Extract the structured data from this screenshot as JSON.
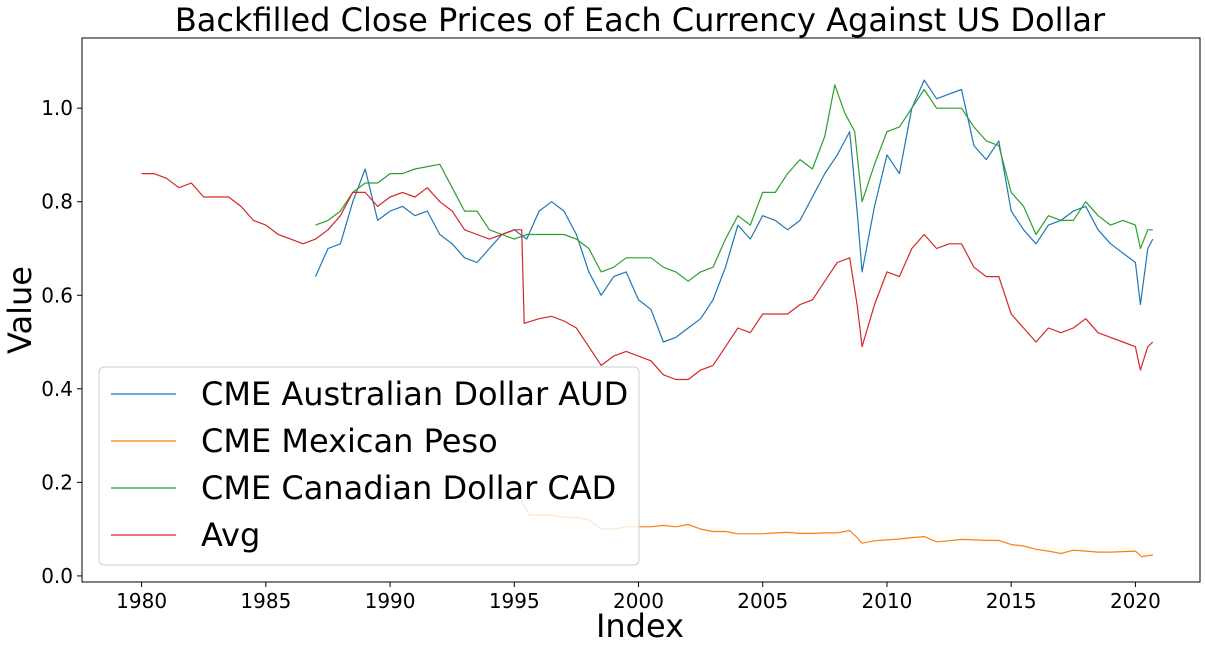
{
  "chart_data": {
    "type": "line",
    "title": "Backfilled Close Prices of Each Currency Against US Dollar",
    "xlabel": "Index",
    "ylabel": "Value",
    "xlim": [
      1977.6,
      2022.6
    ],
    "ylim": [
      -0.013,
      1.15
    ],
    "xticks": [
      1980,
      1985,
      1990,
      1995,
      2000,
      2005,
      2010,
      2015,
      2020
    ],
    "yticks": [
      0.0,
      0.2,
      0.4,
      0.6,
      0.8,
      1.0
    ],
    "ytick_labels": [
      "0.0",
      "0.2",
      "0.4",
      "0.6",
      "0.8",
      "1.0"
    ],
    "grid": false,
    "legend_position": "lower-left",
    "series": [
      {
        "name": "CME Australian Dollar AUD",
        "color": "#1f77b4",
        "points": [
          [
            1987.0,
            0.64
          ],
          [
            1987.5,
            0.7
          ],
          [
            1988.0,
            0.71
          ],
          [
            1988.5,
            0.8
          ],
          [
            1989.0,
            0.87
          ],
          [
            1989.5,
            0.76
          ],
          [
            1990.0,
            0.78
          ],
          [
            1990.5,
            0.79
          ],
          [
            1991.0,
            0.77
          ],
          [
            1991.5,
            0.78
          ],
          [
            1992.0,
            0.73
          ],
          [
            1992.5,
            0.71
          ],
          [
            1993.0,
            0.68
          ],
          [
            1993.5,
            0.67
          ],
          [
            1994.0,
            0.7
          ],
          [
            1994.5,
            0.73
          ],
          [
            1995.0,
            0.74
          ],
          [
            1995.5,
            0.72
          ],
          [
            1996.0,
            0.78
          ],
          [
            1996.5,
            0.8
          ],
          [
            1997.0,
            0.78
          ],
          [
            1997.5,
            0.73
          ],
          [
            1998.0,
            0.65
          ],
          [
            1998.5,
            0.6
          ],
          [
            1999.0,
            0.64
          ],
          [
            1999.5,
            0.65
          ],
          [
            2000.0,
            0.59
          ],
          [
            2000.5,
            0.57
          ],
          [
            2001.0,
            0.5
          ],
          [
            2001.5,
            0.51
          ],
          [
            2002.0,
            0.53
          ],
          [
            2002.5,
            0.55
          ],
          [
            2003.0,
            0.59
          ],
          [
            2003.5,
            0.66
          ],
          [
            2004.0,
            0.75
          ],
          [
            2004.5,
            0.72
          ],
          [
            2005.0,
            0.77
          ],
          [
            2005.5,
            0.76
          ],
          [
            2006.0,
            0.74
          ],
          [
            2006.5,
            0.76
          ],
          [
            2007.0,
            0.81
          ],
          [
            2007.5,
            0.86
          ],
          [
            2008.0,
            0.9
          ],
          [
            2008.5,
            0.95
          ],
          [
            2008.8,
            0.78
          ],
          [
            2009.0,
            0.65
          ],
          [
            2009.5,
            0.79
          ],
          [
            2010.0,
            0.9
          ],
          [
            2010.5,
            0.86
          ],
          [
            2011.0,
            1.0
          ],
          [
            2011.5,
            1.06
          ],
          [
            2012.0,
            1.02
          ],
          [
            2012.5,
            1.03
          ],
          [
            2013.0,
            1.04
          ],
          [
            2013.5,
            0.92
          ],
          [
            2014.0,
            0.89
          ],
          [
            2014.5,
            0.93
          ],
          [
            2015.0,
            0.78
          ],
          [
            2015.5,
            0.74
          ],
          [
            2016.0,
            0.71
          ],
          [
            2016.5,
            0.75
          ],
          [
            2017.0,
            0.76
          ],
          [
            2017.5,
            0.78
          ],
          [
            2018.0,
            0.79
          ],
          [
            2018.5,
            0.74
          ],
          [
            2019.0,
            0.71
          ],
          [
            2019.5,
            0.69
          ],
          [
            2020.0,
            0.67
          ],
          [
            2020.2,
            0.58
          ],
          [
            2020.5,
            0.7
          ],
          [
            2020.7,
            0.72
          ]
        ]
      },
      {
        "name": "CME Mexican Peso",
        "color": "#ff7f0e",
        "points": [
          [
            1995.3,
            0.16
          ],
          [
            1995.6,
            0.13
          ],
          [
            1996.0,
            0.13
          ],
          [
            1996.5,
            0.13
          ],
          [
            1997.0,
            0.125
          ],
          [
            1997.5,
            0.125
          ],
          [
            1998.0,
            0.12
          ],
          [
            1998.5,
            0.1
          ],
          [
            1999.0,
            0.1
          ],
          [
            1999.5,
            0.105
          ],
          [
            2000.0,
            0.105
          ],
          [
            2000.5,
            0.105
          ],
          [
            2001.0,
            0.108
          ],
          [
            2001.5,
            0.105
          ],
          [
            2002.0,
            0.11
          ],
          [
            2002.5,
            0.1
          ],
          [
            2003.0,
            0.095
          ],
          [
            2003.5,
            0.095
          ],
          [
            2004.0,
            0.09
          ],
          [
            2004.5,
            0.09
          ],
          [
            2005.0,
            0.09
          ],
          [
            2005.5,
            0.092
          ],
          [
            2006.0,
            0.093
          ],
          [
            2006.5,
            0.091
          ],
          [
            2007.0,
            0.091
          ],
          [
            2007.5,
            0.092
          ],
          [
            2008.0,
            0.092
          ],
          [
            2008.5,
            0.097
          ],
          [
            2008.8,
            0.082
          ],
          [
            2009.0,
            0.07
          ],
          [
            2009.5,
            0.075
          ],
          [
            2010.0,
            0.077
          ],
          [
            2010.5,
            0.079
          ],
          [
            2011.0,
            0.082
          ],
          [
            2011.5,
            0.084
          ],
          [
            2012.0,
            0.073
          ],
          [
            2012.5,
            0.075
          ],
          [
            2013.0,
            0.078
          ],
          [
            2013.5,
            0.077
          ],
          [
            2014.0,
            0.076
          ],
          [
            2014.5,
            0.076
          ],
          [
            2015.0,
            0.067
          ],
          [
            2015.5,
            0.064
          ],
          [
            2016.0,
            0.057
          ],
          [
            2016.5,
            0.053
          ],
          [
            2017.0,
            0.048
          ],
          [
            2017.5,
            0.055
          ],
          [
            2018.0,
            0.053
          ],
          [
            2018.5,
            0.051
          ],
          [
            2019.0,
            0.051
          ],
          [
            2019.5,
            0.052
          ],
          [
            2020.0,
            0.053
          ],
          [
            2020.25,
            0.041
          ],
          [
            2020.7,
            0.045
          ]
        ]
      },
      {
        "name": "CME Canadian Dollar CAD",
        "color": "#2ca02c",
        "points": [
          [
            1987.0,
            0.75
          ],
          [
            1987.5,
            0.76
          ],
          [
            1988.0,
            0.78
          ],
          [
            1988.5,
            0.82
          ],
          [
            1989.0,
            0.84
          ],
          [
            1989.5,
            0.84
          ],
          [
            1990.0,
            0.86
          ],
          [
            1990.5,
            0.86
          ],
          [
            1991.0,
            0.87
          ],
          [
            1991.5,
            0.875
          ],
          [
            1992.0,
            0.88
          ],
          [
            1992.5,
            0.83
          ],
          [
            1993.0,
            0.78
          ],
          [
            1993.5,
            0.78
          ],
          [
            1994.0,
            0.74
          ],
          [
            1994.5,
            0.73
          ],
          [
            1995.0,
            0.72
          ],
          [
            1995.5,
            0.73
          ],
          [
            1996.0,
            0.73
          ],
          [
            1996.5,
            0.73
          ],
          [
            1997.0,
            0.73
          ],
          [
            1997.5,
            0.72
          ],
          [
            1998.0,
            0.7
          ],
          [
            1998.5,
            0.65
          ],
          [
            1999.0,
            0.66
          ],
          [
            1999.5,
            0.68
          ],
          [
            2000.0,
            0.68
          ],
          [
            2000.5,
            0.68
          ],
          [
            2001.0,
            0.66
          ],
          [
            2001.5,
            0.65
          ],
          [
            2002.0,
            0.63
          ],
          [
            2002.5,
            0.65
          ],
          [
            2003.0,
            0.66
          ],
          [
            2003.5,
            0.72
          ],
          [
            2004.0,
            0.77
          ],
          [
            2004.5,
            0.75
          ],
          [
            2005.0,
            0.82
          ],
          [
            2005.5,
            0.82
          ],
          [
            2006.0,
            0.86
          ],
          [
            2006.5,
            0.89
          ],
          [
            2007.0,
            0.87
          ],
          [
            2007.5,
            0.94
          ],
          [
            2007.9,
            1.05
          ],
          [
            2008.3,
            0.99
          ],
          [
            2008.7,
            0.95
          ],
          [
            2009.0,
            0.8
          ],
          [
            2009.5,
            0.88
          ],
          [
            2010.0,
            0.95
          ],
          [
            2010.5,
            0.96
          ],
          [
            2011.0,
            1.0
          ],
          [
            2011.5,
            1.04
          ],
          [
            2012.0,
            1.0
          ],
          [
            2012.5,
            1.0
          ],
          [
            2013.0,
            1.0
          ],
          [
            2013.5,
            0.96
          ],
          [
            2014.0,
            0.93
          ],
          [
            2014.5,
            0.92
          ],
          [
            2015.0,
            0.82
          ],
          [
            2015.5,
            0.79
          ],
          [
            2016.0,
            0.73
          ],
          [
            2016.5,
            0.77
          ],
          [
            2017.0,
            0.76
          ],
          [
            2017.5,
            0.76
          ],
          [
            2018.0,
            0.8
          ],
          [
            2018.5,
            0.77
          ],
          [
            2019.0,
            0.75
          ],
          [
            2019.5,
            0.76
          ],
          [
            2020.0,
            0.75
          ],
          [
            2020.2,
            0.7
          ],
          [
            2020.5,
            0.74
          ],
          [
            2020.7,
            0.74
          ]
        ]
      },
      {
        "name": "Avg",
        "color": "#d62728",
        "points": [
          [
            1980.0,
            0.86
          ],
          [
            1980.5,
            0.86
          ],
          [
            1981.0,
            0.85
          ],
          [
            1981.5,
            0.83
          ],
          [
            1982.0,
            0.84
          ],
          [
            1982.5,
            0.81
          ],
          [
            1983.0,
            0.81
          ],
          [
            1983.5,
            0.81
          ],
          [
            1984.0,
            0.79
          ],
          [
            1984.5,
            0.76
          ],
          [
            1985.0,
            0.75
          ],
          [
            1985.5,
            0.73
          ],
          [
            1986.0,
            0.72
          ],
          [
            1986.5,
            0.71
          ],
          [
            1987.0,
            0.72
          ],
          [
            1987.5,
            0.74
          ],
          [
            1988.0,
            0.77
          ],
          [
            1988.5,
            0.82
          ],
          [
            1989.0,
            0.82
          ],
          [
            1989.5,
            0.79
          ],
          [
            1990.0,
            0.81
          ],
          [
            1990.5,
            0.82
          ],
          [
            1991.0,
            0.81
          ],
          [
            1991.5,
            0.83
          ],
          [
            1992.0,
            0.8
          ],
          [
            1992.5,
            0.78
          ],
          [
            1993.0,
            0.74
          ],
          [
            1993.5,
            0.73
          ],
          [
            1994.0,
            0.72
          ],
          [
            1994.5,
            0.73
          ],
          [
            1995.0,
            0.74
          ],
          [
            1995.3,
            0.74
          ],
          [
            1995.4,
            0.54
          ],
          [
            1996.0,
            0.55
          ],
          [
            1996.5,
            0.555
          ],
          [
            1997.0,
            0.545
          ],
          [
            1997.5,
            0.53
          ],
          [
            1998.0,
            0.49
          ],
          [
            1998.5,
            0.45
          ],
          [
            1999.0,
            0.47
          ],
          [
            1999.5,
            0.48
          ],
          [
            2000.0,
            0.47
          ],
          [
            2000.5,
            0.46
          ],
          [
            2001.0,
            0.43
          ],
          [
            2001.5,
            0.42
          ],
          [
            2002.0,
            0.42
          ],
          [
            2002.5,
            0.44
          ],
          [
            2003.0,
            0.45
          ],
          [
            2003.5,
            0.49
          ],
          [
            2004.0,
            0.53
          ],
          [
            2004.5,
            0.52
          ],
          [
            2005.0,
            0.56
          ],
          [
            2005.5,
            0.56
          ],
          [
            2006.0,
            0.56
          ],
          [
            2006.5,
            0.58
          ],
          [
            2007.0,
            0.59
          ],
          [
            2007.5,
            0.63
          ],
          [
            2008.0,
            0.67
          ],
          [
            2008.5,
            0.68
          ],
          [
            2008.8,
            0.58
          ],
          [
            2009.0,
            0.49
          ],
          [
            2009.5,
            0.58
          ],
          [
            2010.0,
            0.65
          ],
          [
            2010.5,
            0.64
          ],
          [
            2011.0,
            0.7
          ],
          [
            2011.5,
            0.73
          ],
          [
            2012.0,
            0.7
          ],
          [
            2012.5,
            0.71
          ],
          [
            2013.0,
            0.71
          ],
          [
            2013.5,
            0.66
          ],
          [
            2014.0,
            0.64
          ],
          [
            2014.5,
            0.64
          ],
          [
            2015.0,
            0.56
          ],
          [
            2015.5,
            0.53
          ],
          [
            2016.0,
            0.5
          ],
          [
            2016.5,
            0.53
          ],
          [
            2017.0,
            0.52
          ],
          [
            2017.5,
            0.53
          ],
          [
            2018.0,
            0.55
          ],
          [
            2018.5,
            0.52
          ],
          [
            2019.0,
            0.51
          ],
          [
            2019.5,
            0.5
          ],
          [
            2020.0,
            0.49
          ],
          [
            2020.2,
            0.44
          ],
          [
            2020.5,
            0.49
          ],
          [
            2020.7,
            0.5
          ]
        ]
      }
    ]
  }
}
